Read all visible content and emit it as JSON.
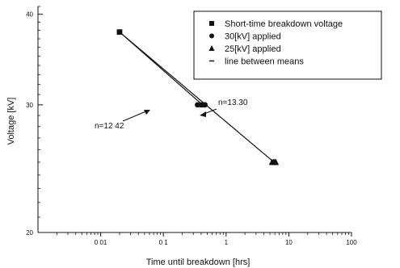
{
  "chart_data": {
    "type": "scatter",
    "title": "",
    "xlabel": "Time until breakdown [hrs]",
    "ylabel": "Voltage [kV]",
    "xscale": "log",
    "yscale": "log",
    "xlim": [
      0.001,
      100
    ],
    "ylim": [
      20,
      41
    ],
    "x_tick_labels": [
      {
        "value": 0.01,
        "label": "0 01"
      },
      {
        "value": 0.1,
        "label": "0 1"
      },
      {
        "value": 1,
        "label": "1"
      },
      {
        "value": 10,
        "label": "10"
      },
      {
        "value": 100,
        "label": "100"
      }
    ],
    "y_tick_labels": [
      {
        "value": 40,
        "label": "40"
      },
      {
        "value": 30,
        "label": "30"
      },
      {
        "value": 20,
        "label": "20"
      }
    ],
    "legend_position": "top-right",
    "series": [
      {
        "name": "Short-time breakdown voltage",
        "marker": "square",
        "points": [
          [
            0.02,
            37.8
          ]
        ]
      },
      {
        "name": "30[kV] applied",
        "marker": "circle",
        "points": [
          [
            0.35,
            30
          ],
          [
            0.39,
            30
          ],
          [
            0.42,
            30
          ],
          [
            0.46,
            30
          ]
        ]
      },
      {
        "name": "25[kV] applied",
        "marker": "triangle",
        "points": [
          [
            5.4,
            25
          ],
          [
            5.7,
            25
          ],
          [
            5.95,
            25
          ],
          [
            6.2,
            25
          ]
        ]
      },
      {
        "name": "line between means",
        "marker": "dash",
        "points": []
      }
    ],
    "fit_lines": [
      {
        "label": "n=12 42",
        "from": [
          0.02,
          37.8
        ],
        "to": [
          0.42,
          30
        ]
      },
      {
        "label": "n=13.30",
        "from": [
          0.02,
          37.8
        ],
        "to": [
          5.8,
          25
        ]
      }
    ],
    "annotations": [
      "n=12 42",
      "n=13.30"
    ]
  }
}
